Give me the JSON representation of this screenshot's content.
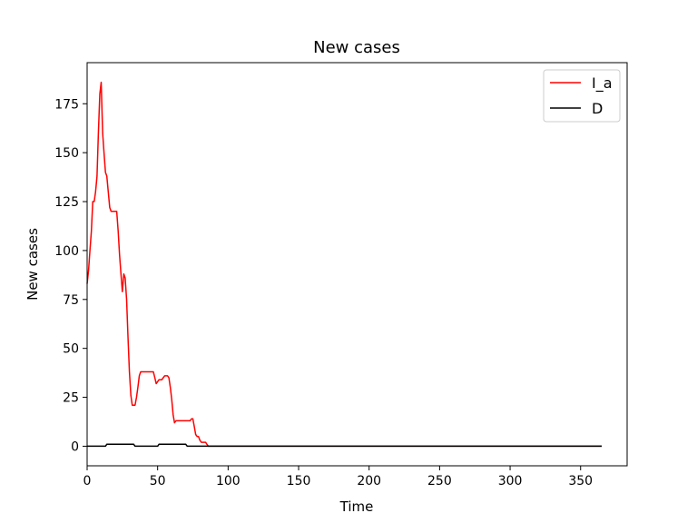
{
  "chart_data": {
    "type": "line",
    "title": "New cases",
    "xlabel": "Time",
    "ylabel": "New cases",
    "xlim": [
      0,
      383
    ],
    "ylim": [
      -10,
      196
    ],
    "xticks": [
      0,
      50,
      100,
      150,
      200,
      250,
      300,
      350
    ],
    "yticks": [
      0,
      25,
      50,
      75,
      100,
      125,
      150,
      175
    ],
    "grid": false,
    "legend_position": "top-right",
    "series": [
      {
        "name": "I_a",
        "color": "#ff0000",
        "x": [
          0,
          1,
          2,
          3,
          4,
          5,
          6,
          7,
          8,
          9,
          10,
          11,
          12,
          13,
          14,
          15,
          16,
          17,
          18,
          19,
          20,
          21,
          22,
          23,
          24,
          25,
          26,
          27,
          28,
          29,
          30,
          31,
          32,
          33,
          34,
          35,
          36,
          37,
          38,
          39,
          40,
          41,
          42,
          43,
          44,
          45,
          46,
          47,
          48,
          49,
          50,
          51,
          52,
          53,
          54,
          55,
          56,
          57,
          58,
          59,
          60,
          61,
          62,
          63,
          64,
          65,
          66,
          67,
          68,
          69,
          70,
          71,
          72,
          73,
          74,
          75,
          76,
          77,
          78,
          79,
          80,
          81,
          82,
          83,
          84,
          85,
          86,
          90,
          365
        ],
        "values": [
          83,
          90,
          100,
          110,
          125,
          125,
          130,
          138,
          160,
          180,
          186,
          160,
          150,
          140,
          138,
          130,
          122,
          120,
          120,
          120,
          120,
          120,
          110,
          98,
          88,
          79,
          88,
          86,
          75,
          55,
          38,
          26,
          21,
          21,
          21,
          25,
          30,
          36,
          38,
          38,
          38,
          38,
          38,
          38,
          38,
          38,
          38,
          38,
          35,
          32,
          33,
          34,
          34,
          34,
          35,
          36,
          36,
          36,
          35,
          30,
          24,
          16,
          12,
          13,
          13,
          13,
          13,
          13,
          13,
          13,
          13,
          13,
          13,
          13,
          14,
          14,
          10,
          6,
          5,
          5,
          3,
          2,
          2,
          2,
          2,
          1,
          0,
          0,
          0
        ]
      },
      {
        "name": "D",
        "color": "#000000",
        "x": [
          0,
          13,
          14,
          33,
          34,
          50,
          51,
          70,
          71,
          365
        ],
        "values": [
          0,
          0,
          1,
          1,
          0,
          0,
          1,
          1,
          0,
          0
        ]
      }
    ]
  }
}
